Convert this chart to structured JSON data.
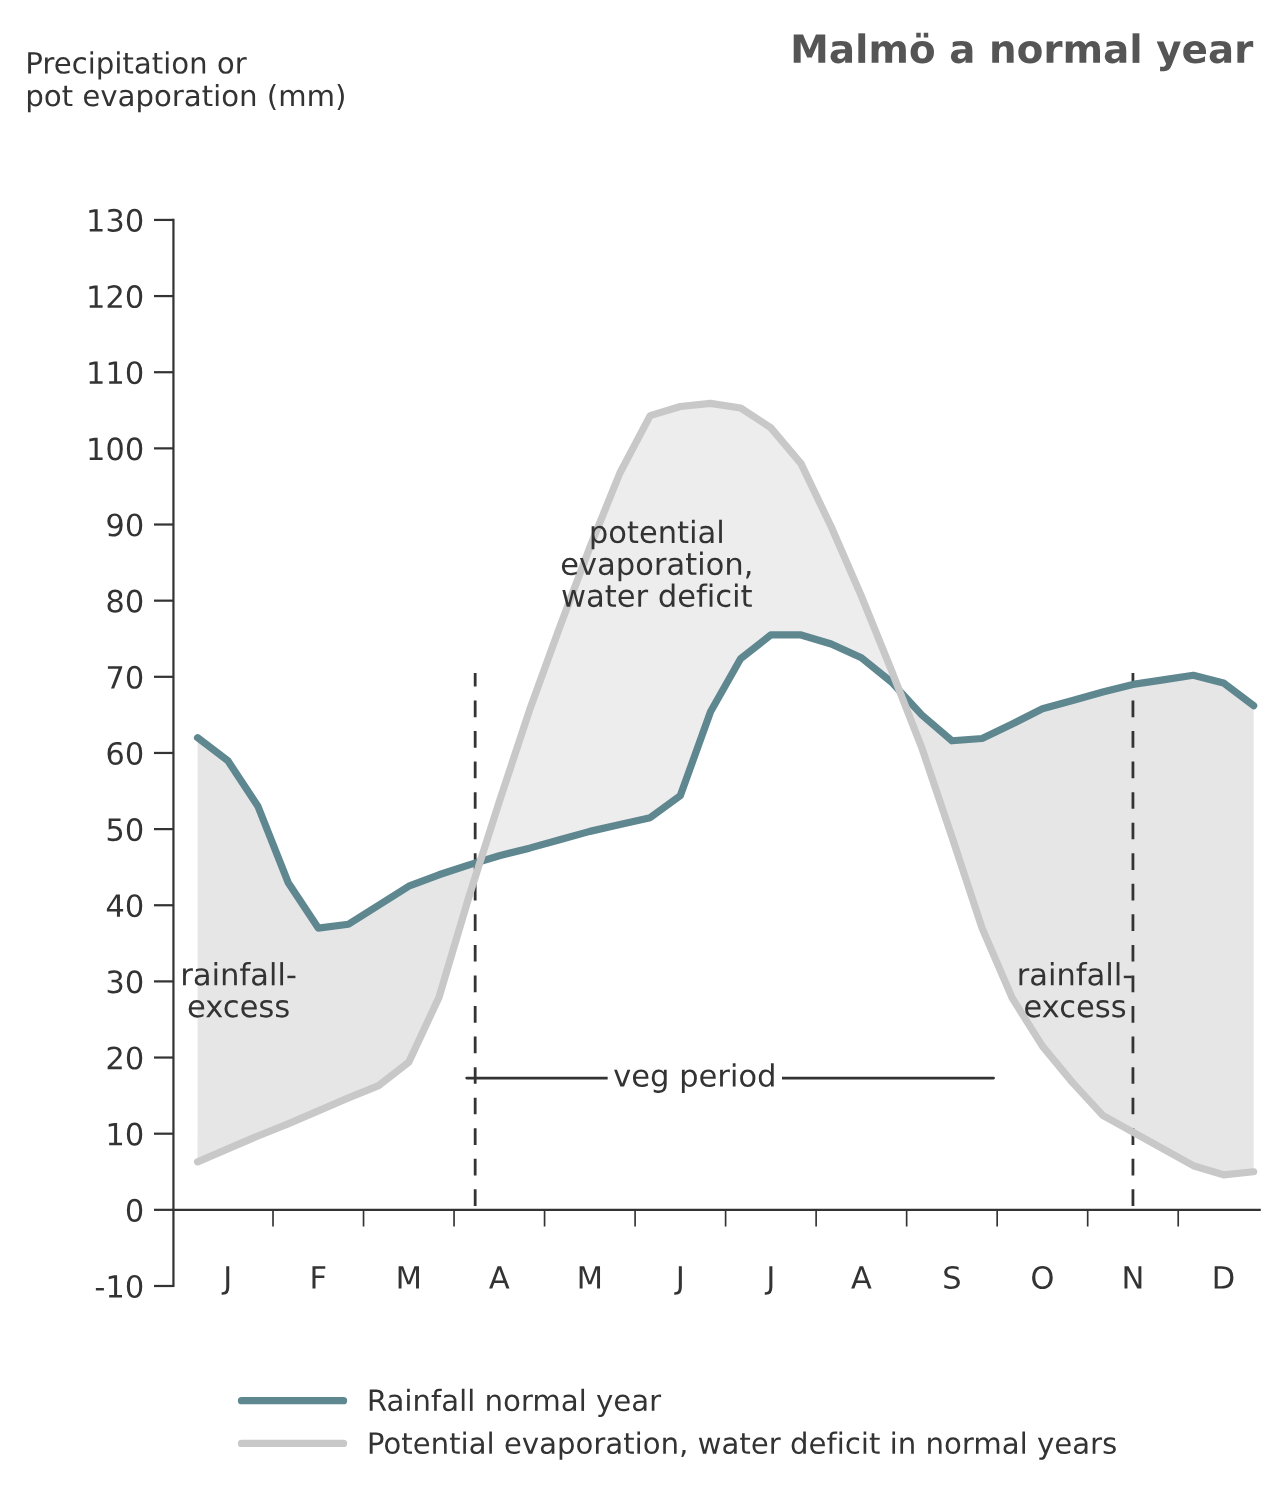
{
  "chart_data": {
    "type": "line",
    "title": "Malmö a normal year",
    "ylabel": "Precipitation or\npot evaporation (mm)",
    "categories": [
      null,
      "J",
      null,
      null,
      "F",
      null,
      null,
      "M",
      null,
      null,
      "A",
      null,
      null,
      "M",
      null,
      null,
      "J",
      null,
      null,
      "J",
      null,
      null,
      "A",
      null,
      null,
      "S",
      null,
      null,
      "O",
      null,
      null,
      "N",
      null,
      null,
      "D",
      null
    ],
    "ylim": [
      -10,
      130
    ],
    "yticks": [
      -10,
      0,
      10,
      20,
      30,
      40,
      50,
      60,
      70,
      80,
      90,
      100,
      110,
      120,
      130
    ],
    "series": [
      {
        "name": "Rainfall normal year",
        "color": "#5e8790",
        "values": [
          62,
          59,
          53,
          43,
          37,
          37.5,
          40,
          42.5,
          44,
          45.3,
          46.5,
          47.5,
          48.6,
          49.7,
          50.6,
          51.5,
          54.4,
          65.4,
          72.4,
          75.5,
          75.5,
          74.3,
          72.5,
          69.3,
          65,
          61.6,
          61.9,
          63.8,
          65.8,
          66.9,
          68,
          69,
          69.6,
          70.2,
          69.2,
          66.2
        ]
      },
      {
        "name": "Potential evaporation, water deficit in normal years",
        "color": "#c8c8c8",
        "values": [
          6.3,
          8,
          9.7,
          11.3,
          13,
          14.7,
          16.3,
          19.4,
          27.9,
          41.2,
          53.6,
          65.6,
          76.5,
          87,
          96.8,
          104.3,
          105.5,
          105.9,
          105.3,
          102.7,
          98,
          89.7,
          80.6,
          70.8,
          60.7,
          49,
          37,
          27.8,
          21.5,
          16.7,
          12.4,
          10.2,
          8,
          5.8,
          4.6,
          5
        ]
      }
    ],
    "annotations": [
      "rainfall-\nexcess",
      "rainfall-\nexcess",
      "potential\nevaporation,\nwater deficit",
      "veg period"
    ],
    "legend": "bottom",
    "grid": false,
    "marker": "none",
    "line_style": "solid"
  }
}
